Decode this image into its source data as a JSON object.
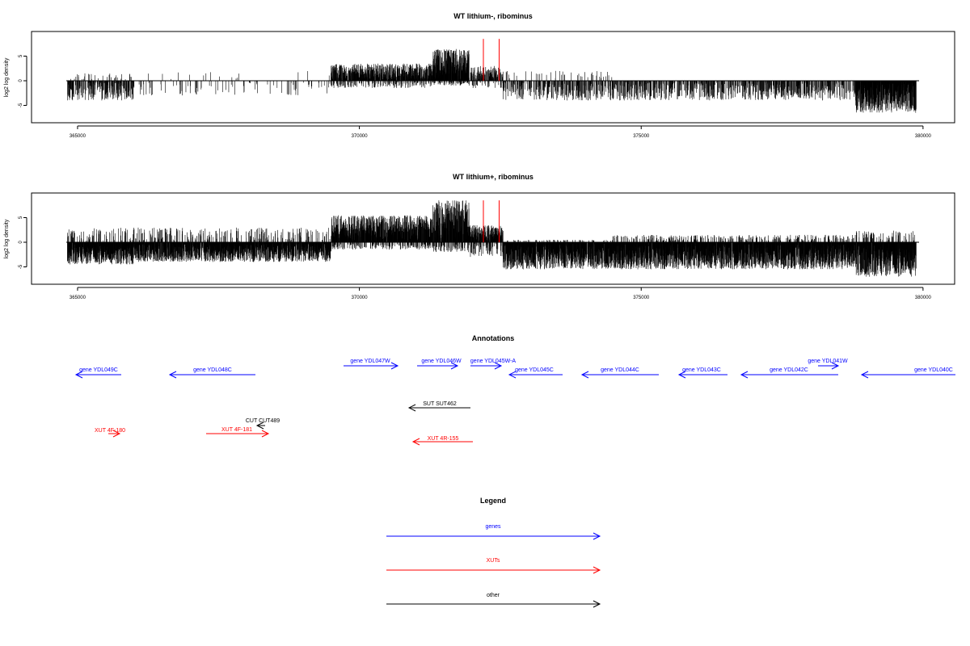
{
  "chart_data": [
    {
      "type": "bar",
      "title": "WT lithium-, ribominus",
      "xlabel": "",
      "ylabel": "log2 log density",
      "xlim": [
        364800,
        379930
      ],
      "ylim": [
        -7.5,
        9
      ],
      "xticks": [
        365000,
        370000,
        375000,
        380000
      ],
      "yticks": [
        -5,
        0,
        5
      ],
      "bar_color": "#000000",
      "highlight_color": "#ff0000",
      "highlight_positions": [
        372200,
        372480
      ],
      "highlight_height": 8.5,
      "segments": [
        {
          "start": 364820,
          "end": 366000,
          "min": -4.0,
          "max": 1.5,
          "density": 0.45
        },
        {
          "start": 366000,
          "end": 369500,
          "min": -3.0,
          "max": 2.0,
          "density": 0.06
        },
        {
          "start": 369500,
          "end": 371300,
          "min": -1.5,
          "max": 3.5,
          "density": 0.8
        },
        {
          "start": 371300,
          "end": 371950,
          "min": -1.0,
          "max": 6.5,
          "density": 2.5
        },
        {
          "start": 371950,
          "end": 372550,
          "min": -1.5,
          "max": 3.0,
          "density": 0.5
        },
        {
          "start": 372550,
          "end": 374500,
          "min": -4.0,
          "max": 2.0,
          "density": 0.35
        },
        {
          "start": 374500,
          "end": 378800,
          "min": -4.0,
          "max": 0.3,
          "density": 0.35
        },
        {
          "start": 378800,
          "end": 379880,
          "min": -6.5,
          "max": 0.3,
          "density": 2.0
        }
      ]
    },
    {
      "type": "bar",
      "title": "WT lithium+, ribominus",
      "xlabel": "",
      "ylabel": "log2 log density",
      "xlim": [
        364800,
        379930
      ],
      "ylim": [
        -7.5,
        9
      ],
      "xticks": [
        365000,
        370000,
        375000,
        380000
      ],
      "yticks": [
        -5,
        0,
        5
      ],
      "bar_color": "#000000",
      "highlight_color": "#ff0000",
      "highlight_positions": [
        372200,
        372480
      ],
      "highlight_height": 8.5,
      "segments": [
        {
          "start": 364820,
          "end": 366000,
          "min": -4.5,
          "max": 3.0,
          "density": 1.0
        },
        {
          "start": 366000,
          "end": 369500,
          "min": -4.0,
          "max": 3.0,
          "density": 0.9
        },
        {
          "start": 369500,
          "end": 371300,
          "min": -1.5,
          "max": 5.5,
          "density": 1.6
        },
        {
          "start": 371300,
          "end": 371950,
          "min": -2.0,
          "max": 8.5,
          "density": 3.0
        },
        {
          "start": 371950,
          "end": 372550,
          "min": -3.0,
          "max": 3.5,
          "density": 1.5
        },
        {
          "start": 372550,
          "end": 374500,
          "min": -5.5,
          "max": 0.5,
          "density": 1.6
        },
        {
          "start": 374500,
          "end": 378800,
          "min": -5.5,
          "max": 1.5,
          "density": 1.6
        },
        {
          "start": 378800,
          "end": 379880,
          "min": -7.0,
          "max": 2.5,
          "density": 3.0
        }
      ]
    }
  ],
  "annotations": {
    "title": "Annotations",
    "items": [
      {
        "label": "gene YDL049C",
        "kind": "gene",
        "x1": 94,
        "x2": 150,
        "y": 464,
        "dir": "left",
        "lx": 122,
        "ly": 460
      },
      {
        "label": "gene YDL048C",
        "kind": "gene",
        "x1": 210,
        "x2": 316,
        "y": 464,
        "dir": "left",
        "lx": 263,
        "ly": 460
      },
      {
        "label": "gene YDL047W",
        "kind": "gene",
        "x1": 425,
        "x2": 492,
        "y": 453,
        "dir": "right",
        "lx": 458,
        "ly": 449
      },
      {
        "label": "gene YDL046W",
        "kind": "gene",
        "x1": 516,
        "x2": 566,
        "y": 453,
        "dir": "right",
        "lx": 546,
        "ly": 449
      },
      {
        "label": "gene YDL045W-A",
        "kind": "gene",
        "x1": 582,
        "x2": 620,
        "y": 453,
        "dir": "right",
        "lx": 610,
        "ly": 449
      },
      {
        "label": "gene YDL045C",
        "kind": "gene",
        "x1": 630,
        "x2": 696,
        "y": 464,
        "dir": "left",
        "lx": 661,
        "ly": 460
      },
      {
        "label": "gene YDL044C",
        "kind": "gene",
        "x1": 720,
        "x2": 815,
        "y": 464,
        "dir": "left",
        "lx": 767,
        "ly": 460
      },
      {
        "label": "gene YDL043C",
        "kind": "gene",
        "x1": 840,
        "x2": 900,
        "y": 464,
        "dir": "left",
        "lx": 868,
        "ly": 460
      },
      {
        "label": "gene YDL042C",
        "kind": "gene",
        "x1": 917,
        "x2": 1037,
        "y": 464,
        "dir": "left",
        "lx": 976,
        "ly": 460
      },
      {
        "label": "gene YDL041W",
        "kind": "gene",
        "x1": 1012,
        "x2": 1037,
        "y": 453,
        "dir": "right",
        "lx": 1024,
        "ly": 449
      },
      {
        "label": "gene YDL040C",
        "kind": "gene",
        "x1": 1066,
        "x2": 1182,
        "y": 464,
        "dir": "left",
        "lx": 1155,
        "ly": 460
      },
      {
        "label": "SUT SUT462",
        "kind": "other",
        "x1": 506,
        "x2": 582,
        "y": 505,
        "dir": "left",
        "lx": 544,
        "ly": 502
      },
      {
        "label": "CUT CUT489",
        "kind": "other",
        "x1": 318,
        "x2": 328,
        "y": 527,
        "dir": "left",
        "lx": 325,
        "ly": 523
      },
      {
        "label": "XUT 4F-180",
        "kind": "xut",
        "x1": 134,
        "x2": 148,
        "y": 537,
        "dir": "right",
        "lx": 136,
        "ly": 535
      },
      {
        "label": "XUT 4F-181",
        "kind": "xut",
        "x1": 255,
        "x2": 332,
        "y": 537,
        "dir": "right",
        "lx": 293,
        "ly": 534
      },
      {
        "label": "XUT 4R-155",
        "kind": "xut",
        "x1": 511,
        "x2": 585,
        "y": 547,
        "dir": "left",
        "lx": 548,
        "ly": 545
      }
    ]
  },
  "legend": {
    "title": "Legend",
    "items": [
      {
        "label": "genes",
        "kind": "gene",
        "y": 664,
        "ly": 654
      },
      {
        "label": "XUTs",
        "kind": "xut",
        "y": 706,
        "ly": 696
      },
      {
        "label": "other",
        "kind": "other",
        "y": 748,
        "ly": 739
      }
    ]
  },
  "colors": {
    "gene": "#0000ff",
    "xut": "#ff0000",
    "other": "#000000"
  }
}
